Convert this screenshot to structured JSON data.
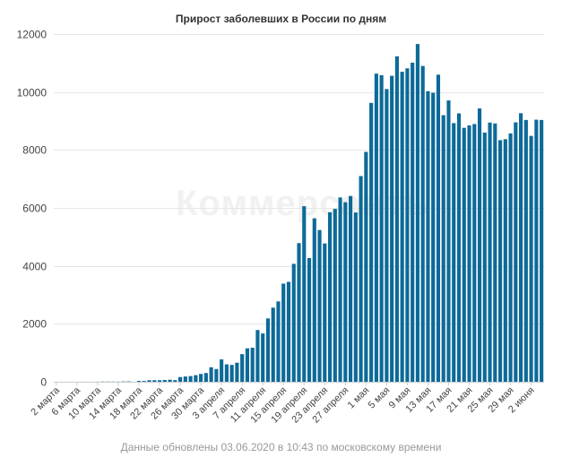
{
  "chart_data": {
    "type": "bar",
    "title": "Прирост заболевших в России по дням",
    "footer": "Данные обновлены 03.06.2020 в 10:43 по московскому времени",
    "watermark": "Коммерсантъ",
    "color": "#0d6a98",
    "ylim": [
      0,
      12000
    ],
    "yticks": [
      0,
      2000,
      4000,
      6000,
      8000,
      10000,
      12000
    ],
    "grid": true,
    "legend": "none",
    "x_tick_labels": [
      "2 марта",
      "6 марта",
      "10 марта",
      "14 марта",
      "18 марта",
      "22 марта",
      "26 марта",
      "30 марта",
      "3 апреля",
      "7 апреля",
      "11 апреля",
      "15 апреля",
      "19 апреля",
      "23 апреля",
      "27 апреля",
      "1 мая",
      "5 мая",
      "9 мая",
      "13 мая",
      "17 мая",
      "21 мая",
      "25 мая",
      "29 мая",
      "2 июня"
    ],
    "tick_every": 4,
    "values": [
      1,
      0,
      0,
      1,
      0,
      1,
      2,
      0,
      3,
      7,
      7,
      6,
      4,
      11,
      14,
      0,
      30,
      27,
      52,
      54,
      53,
      61,
      71,
      57,
      163,
      182,
      196,
      228,
      270,
      302,
      501,
      440,
      771,
      601,
      582,
      658,
      954,
      1154,
      1175,
      1786,
      1667,
      2186,
      2558,
      2774,
      3388,
      3448,
      4070,
      4785,
      6060,
      4268,
      5642,
      5236,
      4774,
      5849,
      5966,
      6361,
      6198,
      6411,
      5841,
      7099,
      7933,
      9623,
      10633,
      10581,
      10102,
      10559,
      11231,
      10699,
      10817,
      11012,
      11656,
      10899,
      10028,
      9974,
      10598,
      9200,
      9709,
      8926,
      9263,
      8764,
      8849,
      8894,
      9434,
      8599,
      8946,
      8915,
      8338,
      8371,
      8572,
      8952,
      9268,
      9035,
      8485,
      9044,
      9035
    ]
  }
}
